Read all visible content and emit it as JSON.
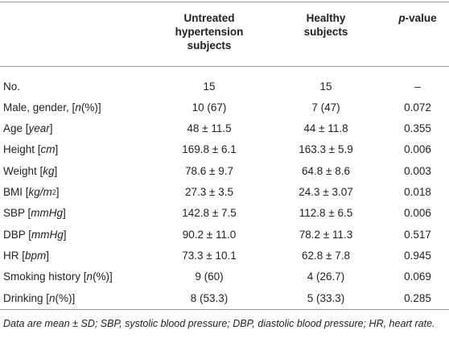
{
  "table": {
    "header": [
      [
        {
          "t": ""
        }
      ],
      [
        {
          "t": "Untreated hypertension subjects"
        }
      ],
      [
        {
          "t": "Healthy subjects"
        }
      ],
      [
        {
          "t": "p",
          "i": true
        },
        {
          "t": "-value"
        }
      ]
    ],
    "rows": [
      [
        [
          {
            "t": "No."
          }
        ],
        "15",
        "15",
        "–"
      ],
      [
        [
          {
            "t": "Male, gender, ["
          },
          {
            "t": "n",
            "i": true
          },
          {
            "t": "(%)]"
          }
        ],
        "10 (67)",
        "7 (47)",
        "0.072"
      ],
      [
        [
          {
            "t": "Age ["
          },
          {
            "t": "year",
            "i": true
          },
          {
            "t": "]"
          }
        ],
        "48 ± 11.5",
        "44 ± 11.8",
        "0.355"
      ],
      [
        [
          {
            "t": "Height ["
          },
          {
            "t": "cm",
            "i": true
          },
          {
            "t": "]"
          }
        ],
        "169.8 ± 6.1",
        "163.3 ± 5.9",
        "0.006"
      ],
      [
        [
          {
            "t": "Weight ["
          },
          {
            "t": "kg",
            "i": true
          },
          {
            "t": "]"
          }
        ],
        "78.6 ± 9.7",
        "64.8 ± 8.6",
        "0.003"
      ],
      [
        [
          {
            "t": "BMI ["
          },
          {
            "t": "kg/m",
            "i": true
          },
          {
            "t": "2",
            "sup": true
          },
          {
            "t": "]"
          }
        ],
        "27.3 ± 3.5",
        "24.3 ± 3.07",
        "0.018"
      ],
      [
        [
          {
            "t": "SBP ["
          },
          {
            "t": "mmHg",
            "i": true
          },
          {
            "t": "]"
          }
        ],
        "142.8 ± 7.5",
        "112.8 ± 6.5",
        "0.006"
      ],
      [
        [
          {
            "t": "DBP ["
          },
          {
            "t": "mmHg",
            "i": true
          },
          {
            "t": "]"
          }
        ],
        "90.2 ± 11.0",
        "78.2 ± 11.3",
        "0.517"
      ],
      [
        [
          {
            "t": "HR ["
          },
          {
            "t": "bpm",
            "i": true
          },
          {
            "t": "]"
          }
        ],
        "73.3 ± 10.1",
        "62.8 ± 7.8",
        "0.945"
      ],
      [
        [
          {
            "t": "Smoking history ["
          },
          {
            "t": "n",
            "i": true
          },
          {
            "t": "(%)]"
          }
        ],
        "9 (60)",
        "4 (26.7)",
        "0.069"
      ],
      [
        [
          {
            "t": "Drinking ["
          },
          {
            "t": "n",
            "i": true
          },
          {
            "t": "(%)]"
          }
        ],
        "8 (53.3)",
        "5 (33.3)",
        "0.285"
      ]
    ],
    "footnote": "Data are mean ± SD; SBP, systolic blood pressure; DBP, diastolic blood pressure; HR, heart rate."
  }
}
